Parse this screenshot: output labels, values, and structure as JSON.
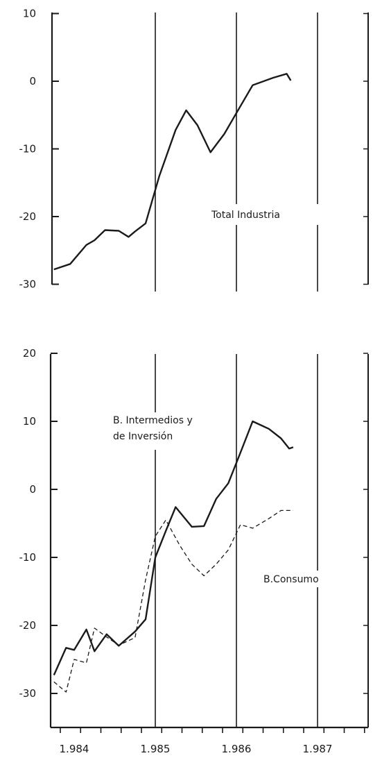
{
  "chart_data": [
    {
      "type": "line",
      "title": "",
      "xlabel": "",
      "ylabel": "",
      "ylim": [
        -30,
        10
      ],
      "yticks": [
        10,
        0,
        -10,
        -20,
        -30
      ],
      "grid": false,
      "vertical_reference_lines": [
        1985.0,
        1986.0,
        1987.0
      ],
      "series": [
        {
          "name": "Total Industria",
          "style": "solid",
          "x": [
            1983.75,
            1983.95,
            1984.15,
            1984.25,
            1984.38,
            1984.55,
            1984.67,
            1984.75,
            1984.88,
            1985.05,
            1985.25,
            1985.38,
            1985.52,
            1985.68,
            1985.85,
            1986.0,
            1986.2,
            1986.45,
            1986.62,
            1986.67
          ],
          "values": [
            -27.8,
            -27.0,
            -24.2,
            -23.5,
            -22.0,
            -22.1,
            -23.0,
            -22.2,
            -21.0,
            -14.0,
            -7.2,
            -4.3,
            -6.5,
            -10.5,
            -7.8,
            -4.7,
            -0.6,
            0.5,
            1.1,
            0.1
          ]
        }
      ]
    },
    {
      "type": "line",
      "title": "",
      "xlabel": "",
      "ylabel": "",
      "ylim": [
        -35,
        20
      ],
      "yticks": [
        20,
        10,
        0,
        -10,
        -20,
        -30
      ],
      "xticks": [
        "1.984",
        "1.985",
        "1.986",
        "1.987"
      ],
      "grid": false,
      "vertical_reference_lines": [
        1985.0,
        1986.0,
        1987.0
      ],
      "series": [
        {
          "name": "B. Intermedios y de Inversión",
          "style": "solid",
          "x": [
            1983.75,
            1983.9,
            1984.0,
            1984.15,
            1984.25,
            1984.4,
            1984.55,
            1984.75,
            1984.88,
            1985.0,
            1985.13,
            1985.25,
            1985.45,
            1985.6,
            1985.75,
            1985.9,
            1986.05,
            1986.2,
            1986.4,
            1986.55,
            1986.65,
            1986.7
          ],
          "values": [
            -27.3,
            -23.3,
            -23.6,
            -20.6,
            -23.8,
            -21.3,
            -23.0,
            -20.9,
            -19.1,
            -10.0,
            -6.1,
            -2.6,
            -5.5,
            -5.4,
            -1.4,
            0.9,
            5.4,
            10.0,
            8.9,
            7.5,
            6.0,
            6.2
          ]
        },
        {
          "name": "B.Consumo",
          "style": "dashed",
          "x": [
            1983.75,
            1983.9,
            1984.0,
            1984.15,
            1984.25,
            1984.4,
            1984.55,
            1984.75,
            1984.88,
            1985.0,
            1985.13,
            1985.3,
            1985.45,
            1985.6,
            1985.75,
            1985.9,
            1986.05,
            1986.2,
            1986.4,
            1986.55,
            1986.7
          ],
          "values": [
            -28.3,
            -29.8,
            -25.0,
            -25.5,
            -20.4,
            -21.7,
            -22.9,
            -21.8,
            -13.3,
            -6.9,
            -4.5,
            -8.2,
            -11.0,
            -12.7,
            -11.0,
            -8.9,
            -5.2,
            -5.7,
            -4.3,
            -3.1,
            -3.1
          ]
        }
      ]
    }
  ]
}
